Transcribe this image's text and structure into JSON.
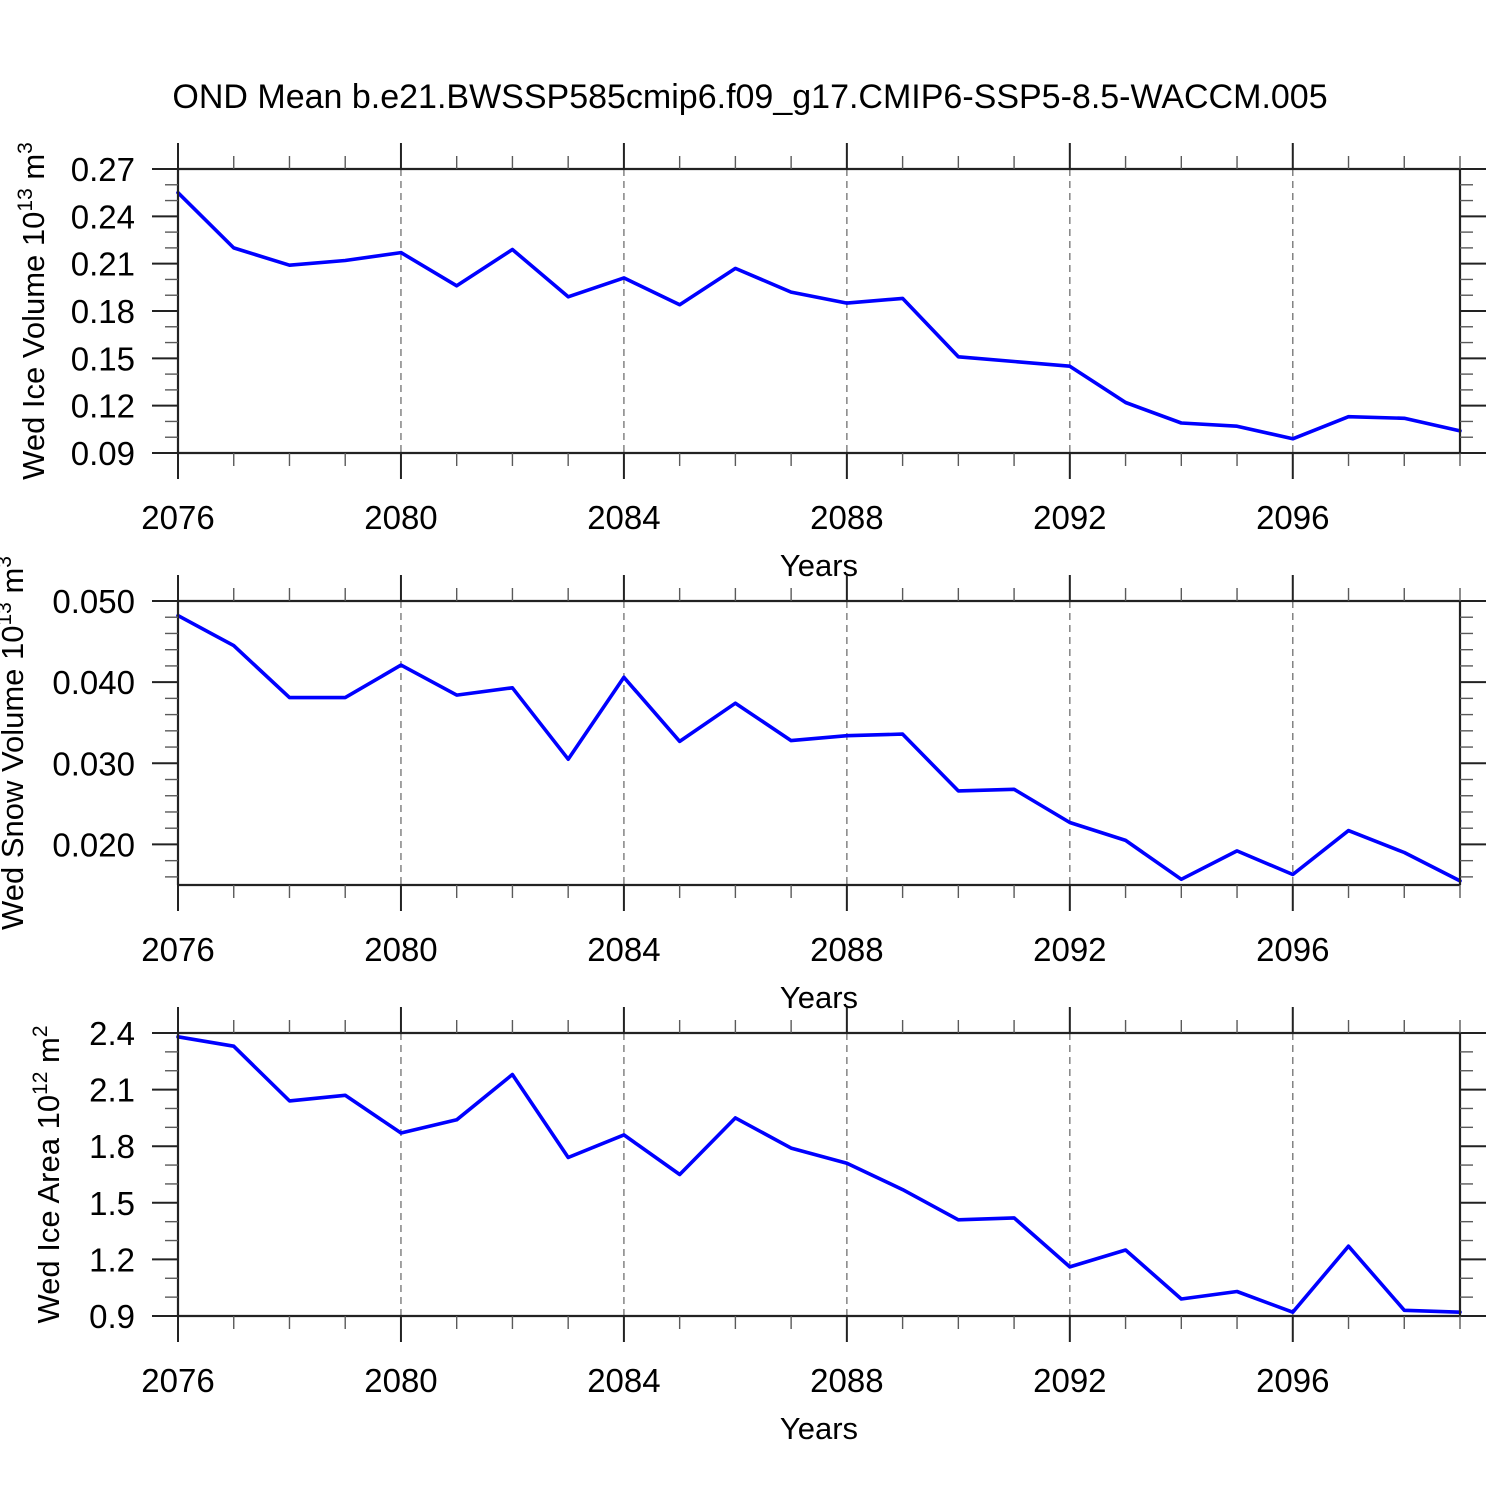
{
  "title": "OND Mean b.e21.BWSSP585cmip6.f09_g17.CMIP6-SSP5-8.5-WACCM.005",
  "style": {
    "background": "#ffffff",
    "line_color": "#0000ff",
    "frame_color": "#222222",
    "major_tick_color": "#222222",
    "minor_tick_color": "#5a5a5a",
    "grid_color": "#7a7a7a",
    "text_color": "#000000"
  },
  "x_axis": {
    "label": "Years",
    "start": 2076,
    "end": 2099,
    "years": [
      2076,
      2077,
      2078,
      2079,
      2080,
      2081,
      2082,
      2083,
      2084,
      2085,
      2086,
      2087,
      2088,
      2089,
      2090,
      2091,
      2092,
      2093,
      2094,
      2095,
      2096,
      2097,
      2098,
      2099
    ],
    "major_ticks": [
      2076,
      2080,
      2084,
      2088,
      2092,
      2096
    ],
    "major_tick_labels": [
      "2076",
      "2080",
      "2084",
      "2088",
      "2092",
      "2096"
    ],
    "minor_tick_step": 1,
    "grid_years": [
      2080,
      2084,
      2088,
      2092,
      2096
    ]
  },
  "chart_data": [
    {
      "type": "line",
      "id": "wed-ice-volume",
      "series_name": "Wed Ice Volume",
      "ylabel": "Wed Ice Volume 10^13 m^3",
      "ylabel_parts": [
        {
          "t": "Wed Ice Volume 10"
        },
        {
          "t": "13",
          "sup": true
        },
        {
          "t": " m"
        },
        {
          "t": "3",
          "sup": true
        }
      ],
      "xlabel": "Years",
      "ylim": [
        0.09,
        0.27
      ],
      "y_major_ticks": [
        0.27,
        0.24,
        0.21,
        0.18,
        0.15,
        0.12,
        0.09
      ],
      "y_major_tick_labels": [
        "0.27",
        "0.24",
        "0.21",
        "0.18",
        "0.15",
        "0.12",
        "0.09"
      ],
      "y_minor_tick_step": 0.01,
      "grid": "vertical-dashed-at-major-x",
      "values": [
        0.255,
        0.22,
        0.209,
        0.212,
        0.217,
        0.196,
        0.219,
        0.189,
        0.201,
        0.184,
        0.207,
        0.192,
        0.185,
        0.188,
        0.151,
        0.148,
        0.145,
        0.122,
        0.109,
        0.107,
        0.099,
        0.113,
        0.112,
        0.104
      ]
    },
    {
      "type": "line",
      "id": "wed-snow-volume",
      "series_name": "Wed Snow Volume",
      "ylabel": "Wed Snow Volume 10^13 m^3",
      "ylabel_parts": [
        {
          "t": "Wed Snow Volume 10"
        },
        {
          "t": "13",
          "sup": true
        },
        {
          "t": " m"
        },
        {
          "t": "3",
          "sup": true
        }
      ],
      "xlabel": "Years",
      "ylim": [
        0.015,
        0.05
      ],
      "y_major_ticks": [
        0.05,
        0.04,
        0.03,
        0.02
      ],
      "y_major_tick_labels": [
        "0.050",
        "0.040",
        "0.030",
        "0.020"
      ],
      "y_minor_tick_step": 0.002,
      "grid": "vertical-dashed-at-major-x",
      "values": [
        0.0482,
        0.0445,
        0.0381,
        0.0381,
        0.0421,
        0.0384,
        0.0393,
        0.0305,
        0.0406,
        0.0327,
        0.0374,
        0.0328,
        0.0334,
        0.0336,
        0.0266,
        0.0268,
        0.0227,
        0.0205,
        0.0157,
        0.0192,
        0.0163,
        0.0217,
        0.019,
        0.0155
      ]
    },
    {
      "type": "line",
      "id": "wed-ice-area",
      "series_name": "Wed Ice Area",
      "ylabel": "Wed Ice Area 10^12 m^2",
      "ylabel_parts": [
        {
          "t": "Wed Ice Area 10"
        },
        {
          "t": "12",
          "sup": true
        },
        {
          "t": " m"
        },
        {
          "t": "2",
          "sup": true
        }
      ],
      "xlabel": "Years",
      "ylim": [
        0.9,
        2.4
      ],
      "y_major_ticks": [
        2.4,
        2.1,
        1.8,
        1.5,
        1.2,
        0.9
      ],
      "y_major_tick_labels": [
        "2.4",
        "2.1",
        "1.8",
        "1.5",
        "1.2",
        "0.9"
      ],
      "y_minor_tick_step": 0.1,
      "grid": "vertical-dashed-at-major-x",
      "values": [
        2.38,
        2.33,
        2.04,
        2.07,
        1.87,
        1.94,
        2.18,
        1.74,
        1.86,
        1.65,
        1.95,
        1.79,
        1.71,
        1.57,
        1.41,
        1.42,
        1.16,
        1.25,
        0.99,
        1.03,
        0.92,
        1.27,
        0.93,
        0.92
      ]
    }
  ]
}
